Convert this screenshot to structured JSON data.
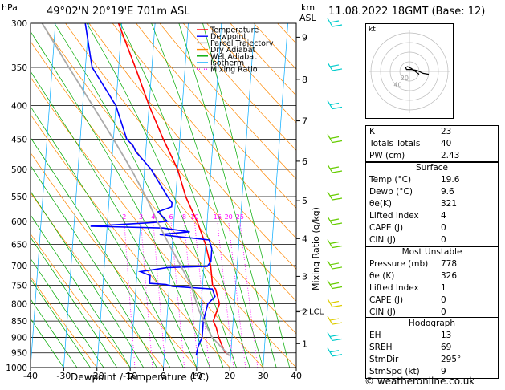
{
  "header": {
    "hpa_label": "hPa",
    "location": "49°02'N  20°19'E  701m  ASL",
    "km_label": "km",
    "asl_label": "ASL",
    "datetime": "11.08.2022  18GMT  (Base: 12)"
  },
  "legend": [
    {
      "label": "Temperature",
      "color": "#ff0000",
      "dash": "solid"
    },
    {
      "label": "Dewpoint",
      "color": "#0000ff",
      "dash": "solid"
    },
    {
      "label": "Parcel Trajectory",
      "color": "#999999",
      "dash": "solid"
    },
    {
      "label": "Dry Adiabat",
      "color": "#ff8800",
      "dash": "solid"
    },
    {
      "label": "Wet Adiabat",
      "color": "#00aa00",
      "dash": "solid"
    },
    {
      "label": "Isotherm",
      "color": "#00aaff",
      "dash": "solid"
    },
    {
      "label": "Mixing Ratio",
      "color": "#ff00ff",
      "dash": "dotted"
    }
  ],
  "chart_data": {
    "type": "line",
    "xlabel": "Dewpoint / Temperature (°C)",
    "ylabel": "hPa",
    "secondary_ylabel": "Mixing Ratio (g/kg)",
    "xlim": [
      -40,
      40
    ],
    "ylim": [
      1000,
      300
    ],
    "x_ticks": [
      -40,
      -30,
      -20,
      -10,
      0,
      10,
      20,
      30,
      40
    ],
    "pressure_levels": [
      300,
      350,
      400,
      450,
      500,
      550,
      600,
      650,
      700,
      750,
      800,
      850,
      900,
      950,
      1000
    ],
    "height_km_ticks": [
      {
        "label": "9",
        "p": 315
      },
      {
        "label": "8",
        "p": 365
      },
      {
        "label": "7",
        "p": 422
      },
      {
        "label": "6",
        "p": 486
      },
      {
        "label": "5",
        "p": 558
      },
      {
        "label": "4",
        "p": 637
      },
      {
        "label": "3",
        "p": 727
      },
      {
        "label": "2",
        "p": 823
      },
      {
        "label": "1",
        "p": 920
      }
    ],
    "lcl": {
      "label": "LCL",
      "p": 820
    },
    "mixing_ratio_labels": [
      "2",
      "3",
      "4",
      "6",
      "8",
      "10",
      "16",
      "20",
      "25"
    ],
    "mixing_ratio_values": [
      2,
      3,
      4,
      6,
      8,
      10,
      16,
      20,
      25
    ],
    "series": [
      {
        "name": "Temperature",
        "color": "#ff0000",
        "points": [
          [
            19.6,
            959
          ],
          [
            18,
            945
          ],
          [
            16,
            900
          ],
          [
            15,
            868
          ],
          [
            14,
            850
          ],
          [
            15.5,
            800
          ],
          [
            14,
            760
          ],
          [
            13,
            750
          ],
          [
            12,
            700
          ],
          [
            10,
            650
          ],
          [
            7,
            600
          ],
          [
            5,
            575
          ],
          [
            3,
            550
          ],
          [
            0,
            500
          ],
          [
            -5,
            450
          ],
          [
            -10,
            400
          ],
          [
            -15,
            350
          ],
          [
            -21,
            300
          ]
        ]
      },
      {
        "name": "Dewpoint",
        "color": "#0000ff",
        "points": [
          [
            9.6,
            959
          ],
          [
            10,
            930
          ],
          [
            11,
            900
          ],
          [
            11,
            868
          ],
          [
            11,
            850
          ],
          [
            12,
            800
          ],
          [
            14,
            780
          ],
          [
            13,
            760
          ],
          [
            1,
            753
          ],
          [
            -1,
            748
          ],
          [
            -6,
            745
          ],
          [
            -6,
            725
          ],
          [
            -9,
            715
          ],
          [
            -1,
            705
          ],
          [
            11,
            702
          ],
          [
            12,
            690
          ],
          [
            12,
            660
          ],
          [
            11,
            640
          ],
          [
            6,
            636
          ],
          [
            2,
            633
          ],
          [
            -4,
            628
          ],
          [
            5,
            622
          ],
          [
            -1,
            616
          ],
          [
            -3,
            614
          ],
          [
            -25,
            610
          ],
          [
            -8,
            603
          ],
          [
            -2,
            600
          ],
          [
            -5,
            580
          ],
          [
            -1,
            570
          ],
          [
            -1,
            562
          ],
          [
            -2,
            554
          ],
          [
            -3,
            545
          ],
          [
            -8,
            500
          ],
          [
            -13,
            470
          ],
          [
            -14,
            460
          ],
          [
            -16,
            450
          ],
          [
            -20,
            400
          ],
          [
            -28,
            350
          ],
          [
            -31,
            300
          ]
        ]
      },
      {
        "name": "Parcel Trajectory",
        "color": "#aaaaaa",
        "points": [
          [
            19.6,
            959
          ],
          [
            14,
            900
          ],
          [
            9.5,
            820
          ],
          [
            6.5,
            750
          ],
          [
            3,
            700
          ],
          [
            -1,
            650
          ],
          [
            -5,
            600
          ],
          [
            -9,
            550
          ],
          [
            -14,
            500
          ],
          [
            -20,
            450
          ],
          [
            -27,
            400
          ],
          [
            -35,
            350
          ],
          [
            -44,
            300
          ]
        ]
      }
    ],
    "wind_barbs": [
      {
        "p": 300,
        "color": "#00cccc"
      },
      {
        "p": 350,
        "color": "#00cccc"
      },
      {
        "p": 400,
        "color": "#00cccc"
      },
      {
        "p": 450,
        "color": "#66cc00"
      },
      {
        "p": 500,
        "color": "#66cc00"
      },
      {
        "p": 550,
        "color": "#66cc00"
      },
      {
        "p": 600,
        "color": "#66cc00"
      },
      {
        "p": 650,
        "color": "#66cc00"
      },
      {
        "p": 700,
        "color": "#66cc00"
      },
      {
        "p": 750,
        "color": "#66cc00"
      },
      {
        "p": 800,
        "color": "#ddcc00"
      },
      {
        "p": 850,
        "color": "#ddcc00"
      },
      {
        "p": 900,
        "color": "#00cccc"
      },
      {
        "p": 950,
        "color": "#00cccc"
      }
    ]
  },
  "hodograph": {
    "unit_label": "kt",
    "ring_labels": [
      "20",
      "40"
    ],
    "trace": [
      [
        10,
        3
      ],
      [
        6,
        0
      ],
      [
        2,
        -3
      ],
      [
        -2,
        -5
      ],
      [
        -4,
        -4
      ],
      [
        -3,
        -2
      ],
      [
        2,
        -2
      ],
      [
        8,
        -1
      ],
      [
        14,
        2
      ],
      [
        20,
        3
      ]
    ]
  },
  "indices": {
    "k_label": "K",
    "k_value": "23",
    "tt_label": "Totals Totals",
    "tt_value": "40",
    "pw_label": "PW (cm)",
    "pw_value": "2.43"
  },
  "surface": {
    "title": "Surface",
    "temp_label": "Temp (°C)",
    "temp_value": "19.6",
    "dewp_label": "Dewp (°C)",
    "dewp_value": "9.6",
    "theta_label": "θe(K)",
    "theta_value": "321",
    "li_label": "Lifted Index",
    "li_value": "4",
    "cape_label": "CAPE (J)",
    "cape_value": "0",
    "cin_label": "CIN (J)",
    "cin_value": "0"
  },
  "most_unstable": {
    "title": "Most Unstable",
    "pressure_label": "Pressure (mb)",
    "pressure_value": "778",
    "theta_label": "θe (K)",
    "theta_value": "326",
    "li_label": "Lifted Index",
    "li_value": "1",
    "cape_label": "CAPE (J)",
    "cape_value": "0",
    "cin_label": "CIN (J)",
    "cin_value": "0"
  },
  "hodograph_stats": {
    "title": "Hodograph",
    "eh_label": "EH",
    "eh_value": "13",
    "sreh_label": "SREH",
    "sreh_value": "69",
    "stmdir_label": "StmDir",
    "stmdir_value": "295°",
    "stmspd_label": "StmSpd (kt)",
    "stmspd_value": "9"
  },
  "copyright": "© weatheronline.co.uk"
}
